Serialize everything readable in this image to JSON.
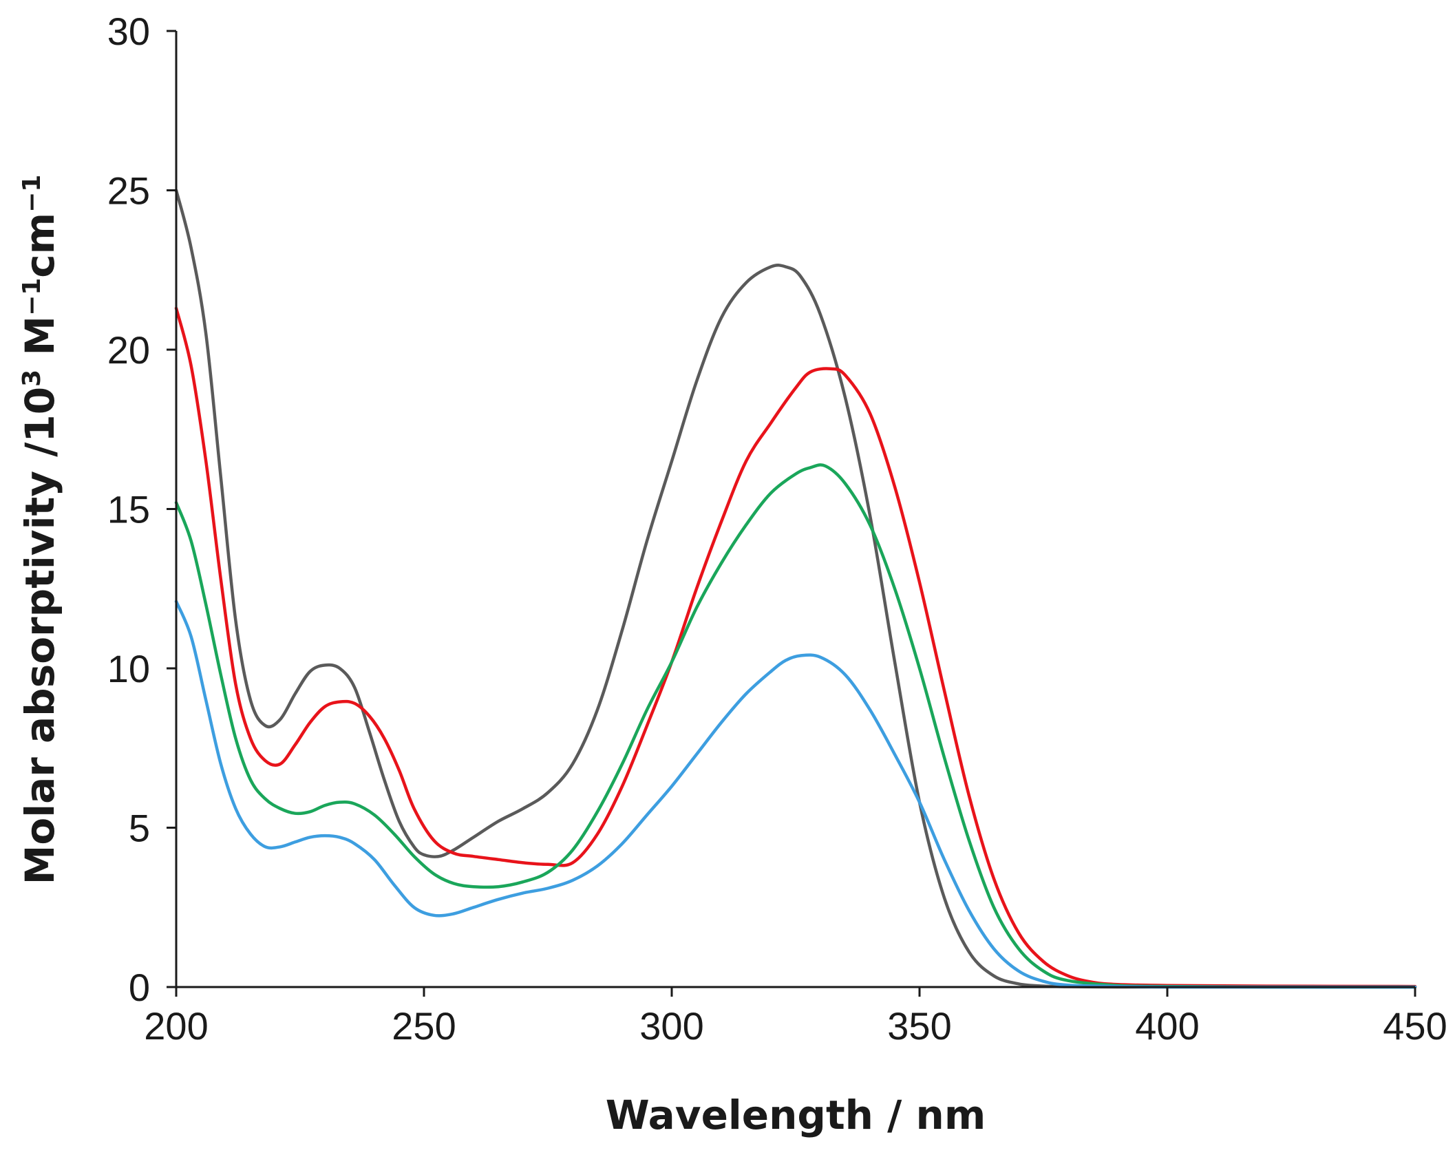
{
  "chart_data": {
    "type": "line",
    "title": "",
    "xlabel": "Wavelength / nm",
    "ylabel": {
      "prefix": "Molar absorptivity /10",
      "sup1": "3",
      "mid": " M",
      "sup2": "−1",
      "suffix": "cm",
      "sup3": "−1"
    },
    "xlim": [
      200,
      450
    ],
    "ylim": [
      0,
      30
    ],
    "xticks": [
      "200",
      "250",
      "300",
      "350",
      "400",
      "450"
    ],
    "yticks": [
      "0",
      "5",
      "10",
      "15",
      "20",
      "25",
      "30"
    ],
    "grid": false,
    "legend": "none",
    "series": [
      {
        "color": "#5a5a5a",
        "x": [
          200,
          203,
          206,
          209,
          212,
          215,
          218,
          221,
          224,
          227,
          230,
          233,
          236,
          239,
          242,
          245,
          248,
          250,
          253,
          256,
          260,
          265,
          270,
          275,
          280,
          285,
          290,
          295,
          300,
          305,
          310,
          315,
          320,
          323,
          326,
          330,
          335,
          340,
          345,
          350,
          355,
          360,
          365,
          370,
          375,
          380,
          390,
          400,
          420,
          450
        ],
        "y": [
          25.0,
          23.2,
          20.5,
          16.0,
          11.5,
          9.0,
          8.2,
          8.4,
          9.2,
          9.9,
          10.1,
          10.0,
          9.4,
          8.0,
          6.5,
          5.2,
          4.4,
          4.15,
          4.1,
          4.3,
          4.7,
          5.2,
          5.6,
          6.1,
          7.0,
          8.7,
          11.2,
          14.0,
          16.5,
          19.0,
          21.0,
          22.1,
          22.6,
          22.6,
          22.3,
          21.1,
          18.5,
          14.8,
          10.2,
          5.8,
          2.8,
          1.1,
          0.35,
          0.1,
          0.03,
          0.01,
          0.0,
          0.0,
          0.0,
          0.0
        ]
      },
      {
        "color": "#e8131a",
        "x": [
          200,
          203,
          206,
          209,
          212,
          215,
          218,
          221,
          224,
          227,
          230,
          233,
          236,
          239,
          242,
          245,
          248,
          252,
          256,
          260,
          265,
          270,
          275,
          280,
          285,
          290,
          295,
          300,
          305,
          310,
          315,
          320,
          325,
          328,
          332,
          335,
          340,
          345,
          350,
          355,
          360,
          365,
          370,
          375,
          380,
          385,
          390,
          400,
          420,
          450
        ],
        "y": [
          21.3,
          19.5,
          16.5,
          12.8,
          9.5,
          7.8,
          7.1,
          7.0,
          7.6,
          8.3,
          8.8,
          8.95,
          8.9,
          8.5,
          7.8,
          6.8,
          5.6,
          4.6,
          4.2,
          4.1,
          4.0,
          3.9,
          3.85,
          3.9,
          4.8,
          6.3,
          8.2,
          10.2,
          12.5,
          14.6,
          16.5,
          17.7,
          18.8,
          19.3,
          19.4,
          19.2,
          18.0,
          15.7,
          12.7,
          9.3,
          6.0,
          3.4,
          1.7,
          0.8,
          0.35,
          0.15,
          0.08,
          0.05,
          0.03,
          0.02
        ]
      },
      {
        "color": "#1aa65a",
        "x": [
          200,
          203,
          206,
          209,
          212,
          215,
          218,
          221,
          224,
          227,
          230,
          233,
          236,
          240,
          244,
          248,
          252,
          256,
          260,
          265,
          270,
          275,
          280,
          285,
          290,
          295,
          300,
          305,
          310,
          315,
          320,
          325,
          328,
          331,
          335,
          340,
          345,
          350,
          355,
          360,
          365,
          370,
          375,
          380,
          390,
          400,
          420,
          450
        ],
        "y": [
          15.2,
          14.0,
          12.0,
          9.8,
          7.8,
          6.5,
          5.9,
          5.6,
          5.45,
          5.5,
          5.7,
          5.8,
          5.75,
          5.4,
          4.8,
          4.1,
          3.55,
          3.25,
          3.15,
          3.15,
          3.3,
          3.6,
          4.3,
          5.5,
          7.0,
          8.7,
          10.2,
          11.9,
          13.3,
          14.5,
          15.5,
          16.1,
          16.3,
          16.35,
          15.8,
          14.5,
          12.5,
          10.0,
          7.2,
          4.6,
          2.5,
          1.2,
          0.5,
          0.2,
          0.05,
          0.02,
          0.0,
          0.0
        ]
      },
      {
        "color": "#3d9ee0",
        "x": [
          200,
          203,
          206,
          209,
          212,
          215,
          218,
          221,
          224,
          227,
          230,
          233,
          236,
          240,
          244,
          248,
          252,
          256,
          260,
          265,
          270,
          275,
          280,
          285,
          290,
          295,
          300,
          305,
          310,
          315,
          320,
          323,
          326,
          330,
          335,
          340,
          345,
          350,
          355,
          360,
          365,
          370,
          375,
          380,
          390,
          400,
          420,
          450
        ],
        "y": [
          12.1,
          11.0,
          9.0,
          7.0,
          5.6,
          4.8,
          4.4,
          4.4,
          4.55,
          4.7,
          4.75,
          4.7,
          4.5,
          4.0,
          3.2,
          2.5,
          2.25,
          2.3,
          2.5,
          2.75,
          2.95,
          3.1,
          3.35,
          3.8,
          4.5,
          5.4,
          6.3,
          7.3,
          8.3,
          9.2,
          9.9,
          10.25,
          10.4,
          10.35,
          9.8,
          8.7,
          7.3,
          5.8,
          4.0,
          2.4,
          1.2,
          0.5,
          0.18,
          0.06,
          0.02,
          0.0,
          0.0,
          0.0
        ]
      }
    ]
  }
}
